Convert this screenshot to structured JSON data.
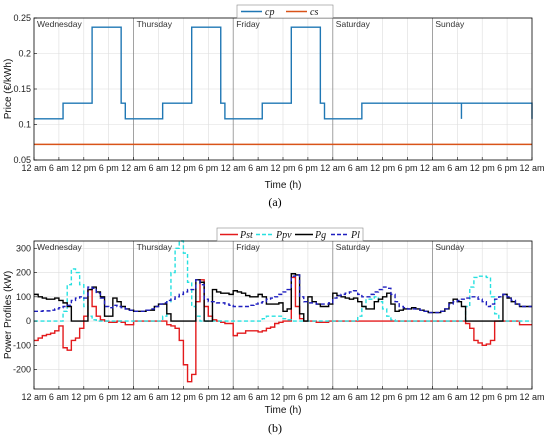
{
  "chart_data": [
    {
      "type": "line",
      "caption": "(a)",
      "xlabel": "Time (h)",
      "ylabel": "Price (€/kWh)",
      "ylim": [
        0.05,
        0.25
      ],
      "yticks": [
        "0.05",
        "0.1",
        "0.15",
        "0.2",
        "0.25"
      ],
      "x_tick_labels": [
        "12 am",
        "6 am",
        "12 pm",
        "6 pm",
        "12 am",
        "6 am",
        "12 pm",
        "6 pm",
        "12 am",
        "6 am",
        "12 pm",
        "6 pm",
        "12 am",
        "6 am",
        "12 pm",
        "6 pm",
        "12 am",
        "6 am",
        "12 pm",
        "6 pm",
        "12 am"
      ],
      "days": [
        "Wednesday",
        "Thursday",
        "Friday",
        "Saturday",
        "Sunday"
      ],
      "grid": true,
      "legend": "top-center",
      "series": [
        {
          "name": "c_p",
          "legend_label": "cp",
          "color": "#1f77b4",
          "step_points": [
            [
              0,
              0.108
            ],
            [
              7,
              0.13
            ],
            [
              14,
              0.237
            ],
            [
              21,
              0.13
            ],
            [
              22,
              0.108
            ],
            [
              31,
              0.13
            ],
            [
              38,
              0.237
            ],
            [
              45,
              0.13
            ],
            [
              46,
              0.108
            ],
            [
              55,
              0.13
            ],
            [
              62,
              0.237
            ],
            [
              69,
              0.13
            ],
            [
              70,
              0.108
            ],
            [
              79,
              0.13
            ],
            [
              103,
              0.108
            ],
            [
              103,
              0.13
            ],
            [
              120,
              0.108
            ]
          ],
          "end_hour": 120
        },
        {
          "name": "c_s",
          "legend_label": "cs",
          "color": "#d95319",
          "constant": 0.072,
          "end_hour": 120
        }
      ]
    },
    {
      "type": "line",
      "caption": "(b)",
      "xlabel": "Time (h)",
      "ylabel": "Power Profiles (kW)",
      "ylim": [
        -280,
        330
      ],
      "yticks": [
        "-200",
        "-100",
        "0",
        "100",
        "200",
        "300"
      ],
      "ytick_values": [
        -200,
        -100,
        0,
        100,
        200,
        300
      ],
      "x_tick_labels": [
        "12 am",
        "6 am",
        "12 pm",
        "6 pm",
        "12 am",
        "6 am",
        "12 pm",
        "6 pm",
        "12 am",
        "6 am",
        "12 pm",
        "6 pm",
        "12 am",
        "6 am",
        "12 pm",
        "6 pm",
        "12 am",
        "6 am",
        "12 pm",
        "6 pm",
        "12 am"
      ],
      "days": [
        "Wednesday",
        "Thursday",
        "Friday",
        "Saturday",
        "Sunday"
      ],
      "grid": true,
      "legend": "top-center",
      "series": [
        {
          "name": "P_st",
          "legend_label": "Pst",
          "color": "#e31a1c",
          "style": "solid",
          "values": [
            -80,
            -70,
            -60,
            -55,
            -50,
            -40,
            -20,
            -110,
            -120,
            -80,
            -70,
            -30,
            20,
            130,
            60,
            20,
            5,
            0,
            -5,
            -5,
            0,
            -5,
            -15,
            -15,
            0,
            0,
            0,
            0,
            0,
            0,
            0,
            0,
            -15,
            -20,
            -30,
            -80,
            -180,
            -250,
            -220,
            80,
            170,
            60,
            20,
            5,
            0,
            -5,
            -10,
            -10,
            -60,
            -50,
            -50,
            -40,
            -40,
            -40,
            -45,
            -40,
            -30,
            -25,
            -10,
            -5,
            0,
            0,
            180,
            60,
            10,
            0,
            0,
            0,
            -5,
            -5,
            -5,
            0,
            0,
            0,
            0,
            0,
            0,
            0,
            0,
            0,
            0,
            0,
            0,
            0,
            0,
            0,
            0,
            0,
            0,
            0,
            0,
            0,
            0,
            0,
            0,
            0,
            0,
            0,
            0,
            0,
            0,
            0,
            0,
            0,
            -10,
            -30,
            -80,
            -90,
            -100,
            -95,
            -80,
            0,
            0,
            0,
            0,
            0,
            0,
            -15,
            -15,
            -15
          ]
        },
        {
          "name": "P_pv",
          "legend_label": "Ppv",
          "color": "#27e0e0",
          "style": "dashed",
          "values": [
            0,
            0,
            0,
            0,
            0,
            0,
            0,
            40,
            150,
            215,
            200,
            150,
            60,
            20,
            5,
            0,
            0,
            0,
            0,
            0,
            0,
            0,
            0,
            0,
            0,
            0,
            0,
            0,
            0,
            0,
            0,
            20,
            80,
            200,
            300,
            330,
            280,
            160,
            60,
            20,
            0,
            0,
            0,
            0,
            0,
            0,
            0,
            0,
            0,
            0,
            0,
            0,
            0,
            0,
            0,
            10,
            20,
            20,
            20,
            20,
            10,
            5,
            0,
            0,
            0,
            0,
            0,
            0,
            0,
            0,
            0,
            0,
            0,
            0,
            0,
            0,
            0,
            0,
            20,
            60,
            90,
            90,
            100,
            80,
            50,
            20,
            5,
            0,
            0,
            0,
            0,
            0,
            0,
            0,
            0,
            0,
            0,
            0,
            0,
            0,
            0,
            0,
            0,
            0,
            60,
            140,
            180,
            185,
            185,
            180,
            100,
            30,
            0,
            0,
            0,
            0,
            0,
            0,
            0,
            0
          ]
        },
        {
          "name": "P_g",
          "legend_label": "Pg",
          "color": "#000000",
          "style": "solid",
          "values": [
            110,
            100,
            95,
            90,
            90,
            95,
            85,
            75,
            60,
            0,
            0,
            0,
            0,
            130,
            140,
            120,
            100,
            20,
            20,
            95,
            80,
            60,
            50,
            45,
            40,
            40,
            40,
            45,
            45,
            60,
            70,
            70,
            30,
            0,
            0,
            0,
            0,
            0,
            0,
            170,
            160,
            0,
            0,
            130,
            120,
            115,
            115,
            110,
            125,
            120,
            115,
            105,
            100,
            100,
            110,
            100,
            70,
            70,
            70,
            75,
            40,
            50,
            195,
            190,
            30,
            0,
            100,
            80,
            70,
            60,
            60,
            70,
            115,
            105,
            100,
            95,
            90,
            95,
            80,
            60,
            50,
            50,
            80,
            90,
            100,
            115,
            70,
            40,
            45,
            50,
            50,
            55,
            50,
            45,
            40,
            35,
            35,
            35,
            40,
            50,
            75,
            90,
            80,
            60,
            0,
            0,
            0,
            0,
            0,
            0,
            0,
            0,
            0,
            110,
            95,
            80,
            70,
            60,
            60,
            60
          ]
        },
        {
          "name": "P_l",
          "legend_label": "Pl",
          "color": "#1f1fbf",
          "style": "dashed",
          "values": [
            40,
            40,
            42,
            42,
            45,
            50,
            55,
            60,
            65,
            85,
            95,
            100,
            95,
            140,
            135,
            115,
            95,
            60,
            55,
            65,
            60,
            55,
            50,
            45,
            40,
            40,
            40,
            45,
            50,
            60,
            70,
            75,
            85,
            90,
            100,
            110,
            120,
            130,
            130,
            170,
            150,
            90,
            80,
            80,
            75,
            75,
            70,
            65,
            60,
            60,
            60,
            60,
            65,
            70,
            75,
            80,
            90,
            95,
            100,
            110,
            120,
            130,
            185,
            190,
            100,
            80,
            75,
            75,
            70,
            70,
            70,
            75,
            95,
            105,
            110,
            115,
            120,
            125,
            110,
            100,
            100,
            110,
            120,
            130,
            140,
            135,
            110,
            80,
            60,
            55,
            50,
            50,
            50,
            45,
            40,
            35,
            35,
            35,
            40,
            50,
            70,
            80,
            85,
            90,
            95,
            100,
            100,
            90,
            80,
            60,
            70,
            90,
            100,
            110,
            100,
            85,
            70,
            60,
            60,
            60
          ]
        }
      ]
    }
  ]
}
